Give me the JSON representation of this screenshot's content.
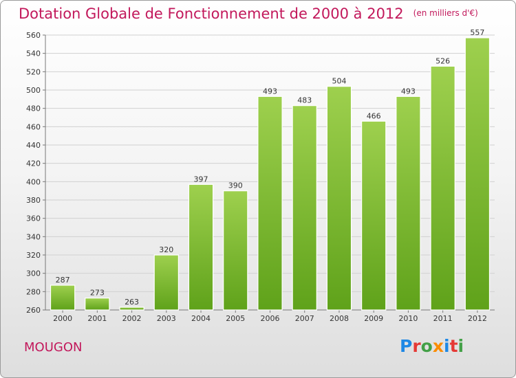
{
  "header": {
    "title": "Dotation Globale de Fonctionnement de 2000 à 2012",
    "unit": "(en milliers d'€)"
  },
  "footer": {
    "city": "MOUGON",
    "logo": {
      "letters": [
        "P",
        "r",
        "o",
        "x",
        "i",
        "t",
        "i"
      ],
      "colors": [
        "#1e88e5",
        "#e53935",
        "#43a047",
        "#fb8c00",
        "#1e88e5",
        "#e53935",
        "#43a047"
      ]
    }
  },
  "colors": {
    "accent": "#c2185b",
    "bar_light": "#9ed04e",
    "bar_dark": "#5fa21a"
  },
  "chart_data": {
    "type": "bar",
    "title": "Dotation Globale de Fonctionnement de 2000 à 2012",
    "subtitle": "(en milliers d'€)",
    "categories": [
      "2000",
      "2001",
      "2002",
      "2003",
      "2004",
      "2005",
      "2006",
      "2007",
      "2008",
      "2009",
      "2010",
      "2011",
      "2012"
    ],
    "values": [
      287,
      273,
      263,
      320,
      397,
      390,
      493,
      483,
      504,
      466,
      493,
      526,
      557
    ],
    "ylim": [
      260,
      560
    ],
    "yticks": [
      260,
      280,
      300,
      320,
      340,
      360,
      380,
      400,
      420,
      440,
      460,
      480,
      500,
      520,
      540,
      560
    ],
    "grid": true,
    "legend": "none"
  }
}
